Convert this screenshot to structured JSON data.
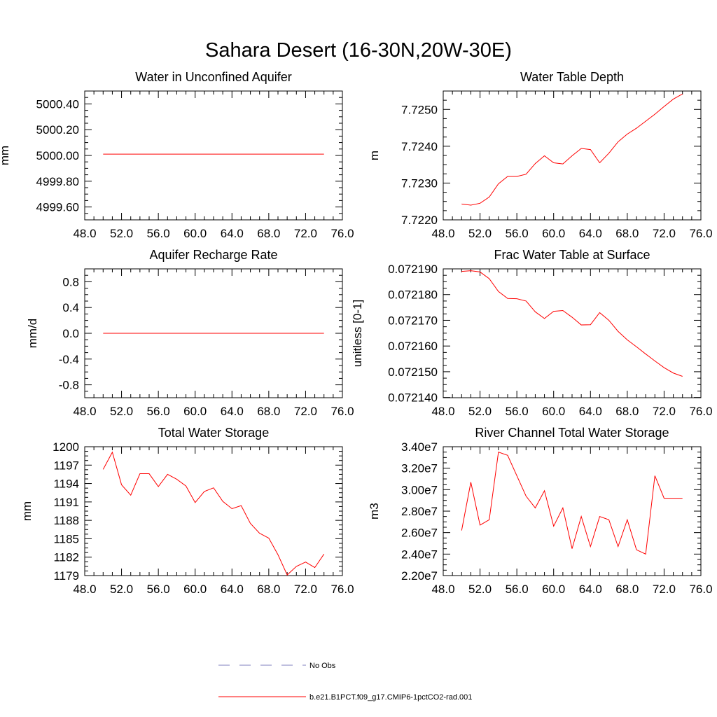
{
  "title": "Sahara Desert (16-30N,20W-30E)",
  "legend": [
    {
      "label": "No Obs",
      "color": "#7f7fbf",
      "style": "dashed"
    },
    {
      "label": "b.e21.B1PCT.f09_g17.CMIP6-1pctCO2-rad.001",
      "color": "#ff0000",
      "style": "solid"
    }
  ],
  "series_color": "#ff0000",
  "chart_data": [
    {
      "type": "line",
      "title": "Water in Unconfined Aquifer",
      "ylabel": "mm",
      "xlim": [
        48,
        76
      ],
      "ylim": [
        4999.5,
        5000.5
      ],
      "xticks": [
        48,
        52,
        56,
        60,
        64,
        68,
        72,
        76
      ],
      "xtick_labels": [
        "48.0",
        "52.0",
        "56.0",
        "60.0",
        "64.0",
        "68.0",
        "72.0",
        "76.0"
      ],
      "yticks": [
        4999.6,
        4999.8,
        5000.0,
        5000.2,
        5000.4
      ],
      "ytick_labels": [
        "4999.60",
        "4999.80",
        "5000.00",
        "5000.20",
        "5000.40"
      ],
      "series": [
        {
          "x": [
            50,
            51,
            52,
            53,
            54,
            55,
            56,
            57,
            58,
            59,
            60,
            61,
            62,
            63,
            64,
            65,
            66,
            67,
            68,
            69,
            70,
            71,
            72,
            73,
            74
          ],
          "values": [
            5000.01,
            5000.01,
            5000.01,
            5000.01,
            5000.01,
            5000.01,
            5000.01,
            5000.01,
            5000.01,
            5000.01,
            5000.01,
            5000.01,
            5000.01,
            5000.01,
            5000.01,
            5000.01,
            5000.01,
            5000.01,
            5000.01,
            5000.01,
            5000.01,
            5000.01,
            5000.01,
            5000.01,
            5000.01
          ]
        }
      ]
    },
    {
      "type": "line",
      "title": "Water Table Depth",
      "ylabel": "m",
      "xlim": [
        48,
        76
      ],
      "ylim": [
        7.722,
        7.7255
      ],
      "xticks": [
        48,
        52,
        56,
        60,
        64,
        68,
        72,
        76
      ],
      "xtick_labels": [
        "48.0",
        "52.0",
        "56.0",
        "60.0",
        "64.0",
        "68.0",
        "72.0",
        "76.0"
      ],
      "yticks": [
        7.722,
        7.723,
        7.724,
        7.725
      ],
      "ytick_labels": [
        "7.7220",
        "7.7230",
        "7.7240",
        "7.7250"
      ],
      "series": [
        {
          "x": [
            50,
            51,
            52,
            53,
            54,
            55,
            56,
            57,
            58,
            59,
            60,
            61,
            62,
            63,
            64,
            65,
            66,
            67,
            68,
            69,
            70,
            71,
            72,
            73,
            74
          ],
          "values": [
            7.72243,
            7.7224,
            7.72245,
            7.72262,
            7.72298,
            7.72318,
            7.72318,
            7.72324,
            7.72353,
            7.72374,
            7.72355,
            7.72352,
            7.72374,
            7.72394,
            7.72391,
            7.72355,
            7.72381,
            7.72412,
            7.72433,
            7.72449,
            7.72468,
            7.72487,
            7.72508,
            7.72528,
            7.72542
          ]
        }
      ]
    },
    {
      "type": "line",
      "title": "Aquifer Recharge Rate",
      "ylabel": "mm/d",
      "xlim": [
        48,
        76
      ],
      "ylim": [
        -1.0,
        1.0
      ],
      "xticks": [
        48,
        52,
        56,
        60,
        64,
        68,
        72,
        76
      ],
      "xtick_labels": [
        "48.0",
        "52.0",
        "56.0",
        "60.0",
        "64.0",
        "68.0",
        "72.0",
        "76.0"
      ],
      "yticks": [
        -0.8,
        -0.4,
        0.0,
        0.4,
        0.8
      ],
      "ytick_labels": [
        "-0.8",
        "-0.4",
        "0.0",
        "0.4",
        "0.8"
      ],
      "series": [
        {
          "x": [
            50,
            51,
            52,
            53,
            54,
            55,
            56,
            57,
            58,
            59,
            60,
            61,
            62,
            63,
            64,
            65,
            66,
            67,
            68,
            69,
            70,
            71,
            72,
            73,
            74
          ],
          "values": [
            0,
            0,
            0,
            0,
            0,
            0,
            0,
            0,
            0,
            0,
            0,
            0,
            0,
            0,
            0,
            0,
            0,
            0,
            0,
            0,
            0,
            0,
            0,
            0,
            0
          ]
        }
      ]
    },
    {
      "type": "line",
      "title": "Frac Water Table at Surface",
      "ylabel": "unitless [0-1]",
      "xlim": [
        48,
        76
      ],
      "ylim": [
        0.0721399,
        0.07219
      ],
      "xticks": [
        48,
        52,
        56,
        60,
        64,
        68,
        72,
        76
      ],
      "xtick_labels": [
        "48.0",
        "52.0",
        "56.0",
        "60.0",
        "64.0",
        "68.0",
        "72.0",
        "76.0"
      ],
      "yticks": [
        0.07214,
        0.07215,
        0.07216,
        0.07217,
        0.07218,
        0.07219
      ],
      "ytick_labels": [
        "0.072140",
        "0.072150",
        "0.072160",
        "0.072170",
        "0.072180",
        "0.072190"
      ],
      "series": [
        {
          "x": [
            50,
            51,
            52,
            53,
            54,
            55,
            56,
            57,
            58,
            59,
            60,
            61,
            62,
            63,
            64,
            65,
            66,
            67,
            68,
            69,
            70,
            71,
            72,
            73,
            74
          ],
          "values": [
            0.072189,
            0.0721893,
            0.0721888,
            0.0721862,
            0.0721812,
            0.0721785,
            0.0721784,
            0.0721775,
            0.0721733,
            0.0721707,
            0.0721735,
            0.0721738,
            0.0721712,
            0.0721682,
            0.0721683,
            0.072173,
            0.07217,
            0.0721657,
            0.0721624,
            0.0721597,
            0.0721569,
            0.0721542,
            0.0721516,
            0.0721495,
            0.0721482
          ]
        }
      ]
    },
    {
      "type": "line",
      "title": "Total Water Storage",
      "ylabel": "mm",
      "xlim": [
        48,
        76
      ],
      "ylim": [
        1179,
        1200
      ],
      "xticks": [
        48,
        52,
        56,
        60,
        64,
        68,
        72,
        76
      ],
      "xtick_labels": [
        "48.0",
        "52.0",
        "56.0",
        "60.0",
        "64.0",
        "68.0",
        "72.0",
        "76.0"
      ],
      "yticks": [
        1179,
        1182,
        1185,
        1188,
        1191,
        1194,
        1197,
        1200
      ],
      "ytick_labels": [
        "1179",
        "1182",
        "1185",
        "1188",
        "1191",
        "1194",
        "1197",
        "1200"
      ],
      "series": [
        {
          "x": [
            50,
            51,
            52,
            53,
            54,
            55,
            56,
            57,
            58,
            59,
            60,
            61,
            62,
            63,
            64,
            65,
            66,
            67,
            68,
            69,
            70,
            71,
            72,
            73,
            74
          ],
          "values": [
            1196.3,
            1199.1,
            1193.8,
            1192.1,
            1195.6,
            1195.6,
            1193.5,
            1195.5,
            1194.7,
            1193.6,
            1190.9,
            1192.7,
            1193.3,
            1191.1,
            1189.9,
            1190.4,
            1187.5,
            1185.9,
            1185.1,
            1182.4,
            1179.1,
            1180.5,
            1181.2,
            1180.3,
            1182.5
          ]
        }
      ]
    },
    {
      "type": "line",
      "title": "River Channel Total Water Storage",
      "ylabel": "m3",
      "xlim": [
        48,
        76
      ],
      "ylim": [
        22000000,
        34000000
      ],
      "xticks": [
        48,
        52,
        56,
        60,
        64,
        68,
        72,
        76
      ],
      "xtick_labels": [
        "48.0",
        "52.0",
        "56.0",
        "60.0",
        "64.0",
        "68.0",
        "72.0",
        "76.0"
      ],
      "yticks": [
        22000000,
        24000000,
        26000000,
        28000000,
        30000000,
        32000000,
        34000000
      ],
      "ytick_labels": [
        "2.20e7",
        "2.40e7",
        "2.60e7",
        "2.80e7",
        "3.00e7",
        "3.20e7",
        "3.40e7"
      ],
      "series": [
        {
          "x": [
            50,
            51,
            52,
            53,
            54,
            55,
            56,
            57,
            58,
            59,
            60,
            61,
            62,
            63,
            64,
            65,
            66,
            67,
            68,
            69,
            70,
            71,
            72,
            73,
            74
          ],
          "values": [
            26200000,
            30700000,
            26700000,
            27200000,
            33500000,
            33200000,
            31300000,
            29400000,
            28300000,
            29900000,
            26600000,
            28300000,
            24500000,
            27500000,
            24700000,
            27500000,
            27200000,
            24700000,
            27200000,
            24400000,
            24000000,
            31300000,
            29200000,
            29200000,
            29200000
          ]
        }
      ]
    }
  ]
}
